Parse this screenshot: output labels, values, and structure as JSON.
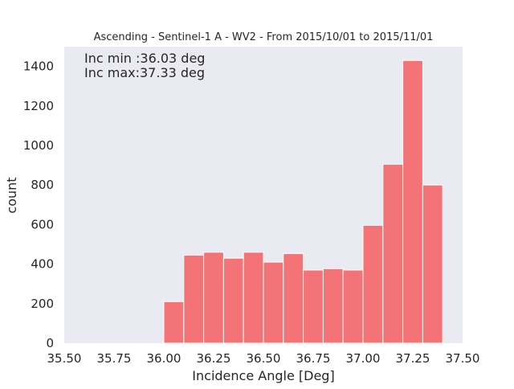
{
  "chart_data": {
    "type": "bar",
    "title": "Ascending - Sentinel-1 A - WV2 - From 2015/10/01 to 2015/11/01",
    "xlabel": "Incidence Angle [Deg]",
    "ylabel": "count",
    "xlim": [
      35.5,
      37.5
    ],
    "ylim": [
      0,
      1500
    ],
    "xticks": [
      "35.50",
      "35.75",
      "36.00",
      "36.25",
      "36.50",
      "36.75",
      "37.00",
      "37.25",
      "37.50"
    ],
    "xtick_values": [
      35.5,
      35.75,
      36.0,
      36.25,
      36.5,
      36.75,
      37.0,
      37.25,
      37.5
    ],
    "yticks": [
      "0",
      "200",
      "400",
      "600",
      "800",
      "1000",
      "1200",
      "1400"
    ],
    "ytick_values": [
      0,
      200,
      400,
      600,
      800,
      1000,
      1200,
      1400
    ],
    "bin_edges": [
      36.0,
      36.1,
      36.2,
      36.3,
      36.4,
      36.5,
      36.6,
      36.7,
      36.8,
      36.9,
      37.0,
      37.1,
      37.2,
      37.3,
      37.4
    ],
    "values": [
      210,
      445,
      460,
      430,
      460,
      410,
      453,
      370,
      377,
      370,
      596,
      905,
      1430,
      800
    ],
    "bar_color": "#f47376",
    "background_color": "#eaeaf2",
    "grid": false,
    "annotations": [
      "Inc min :36.03 deg",
      "Inc max:37.33 deg"
    ]
  }
}
